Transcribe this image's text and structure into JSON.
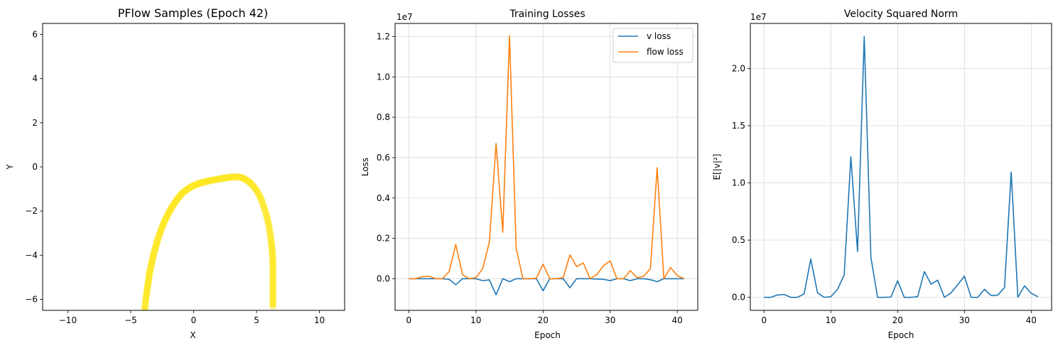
{
  "chart_data": [
    {
      "type": "scatter",
      "title": "PFlow Samples (Epoch 42)",
      "xlabel": "X",
      "ylabel": "Y",
      "xlim": [
        -12,
        12
      ],
      "ylim": [
        -6.5,
        6.5
      ],
      "xticks": [
        -10,
        -5,
        0,
        5,
        10
      ],
      "yticks": [
        -6,
        -4,
        -2,
        0,
        2,
        4,
        6
      ],
      "grid": false,
      "color": "#fde725",
      "points": [
        [
          -3.9,
          -6.5
        ],
        [
          -3.8,
          -6.0
        ],
        [
          -3.7,
          -5.6
        ],
        [
          -3.6,
          -5.2
        ],
        [
          -3.5,
          -4.8
        ],
        [
          -3.35,
          -4.4
        ],
        [
          -3.2,
          -4.0
        ],
        [
          -3.0,
          -3.6
        ],
        [
          -2.8,
          -3.2
        ],
        [
          -2.55,
          -2.8
        ],
        [
          -2.3,
          -2.45
        ],
        [
          -2.0,
          -2.1
        ],
        [
          -1.7,
          -1.8
        ],
        [
          -1.35,
          -1.5
        ],
        [
          -1.0,
          -1.25
        ],
        [
          -0.6,
          -1.05
        ],
        [
          -0.2,
          -0.9
        ],
        [
          0.2,
          -0.8
        ],
        [
          0.6,
          -0.72
        ],
        [
          1.0,
          -0.66
        ],
        [
          1.5,
          -0.6
        ],
        [
          2.0,
          -0.55
        ],
        [
          2.5,
          -0.5
        ],
        [
          3.0,
          -0.46
        ],
        [
          3.5,
          -0.45
        ],
        [
          4.0,
          -0.52
        ],
        [
          4.5,
          -0.72
        ],
        [
          5.0,
          -1.05
        ],
        [
          5.4,
          -1.5
        ],
        [
          5.75,
          -2.1
        ],
        [
          6.0,
          -2.7
        ],
        [
          6.15,
          -3.3
        ],
        [
          6.25,
          -3.8
        ],
        [
          6.3,
          -4.3
        ],
        [
          6.3,
          -4.8
        ],
        [
          6.3,
          -5.3
        ],
        [
          6.3,
          -5.8
        ],
        [
          6.3,
          -6.3
        ]
      ]
    },
    {
      "type": "line",
      "title": "Training Losses",
      "xlabel": "Epoch",
      "ylabel": "Loss",
      "offset_label": "1e7",
      "xlim": [
        -2.05,
        43.05
      ],
      "ylim": [
        -0.157,
        1.265
      ],
      "xticks": [
        0,
        10,
        20,
        30,
        40
      ],
      "yticks": [
        0.0,
        0.2,
        0.4,
        0.6,
        0.8,
        1.0,
        1.2
      ],
      "grid": true,
      "legend": "top-right",
      "x": [
        0,
        1,
        2,
        3,
        4,
        5,
        6,
        7,
        8,
        9,
        10,
        11,
        12,
        13,
        14,
        15,
        16,
        17,
        18,
        19,
        20,
        21,
        22,
        23,
        24,
        25,
        26,
        27,
        28,
        29,
        30,
        31,
        32,
        33,
        34,
        35,
        36,
        37,
        38,
        39,
        40,
        41
      ],
      "series": [
        {
          "name": "v loss",
          "color": "#1f77b4",
          "values": [
            0,
            0,
            0,
            0,
            0,
            0,
            -0.003,
            -0.03,
            0,
            0,
            0,
            -0.01,
            -0.006,
            -0.08,
            0,
            -0.015,
            0,
            0,
            0,
            0,
            -0.06,
            0,
            0,
            0,
            -0.045,
            0,
            0,
            0,
            -0.002,
            -0.003,
            -0.01,
            0,
            0,
            -0.01,
            0,
            0,
            -0.005,
            -0.015,
            0,
            0,
            0,
            0
          ]
        },
        {
          "name": "flow loss",
          "color": "#ff7f0e",
          "values": [
            0,
            0,
            0.01,
            0.012,
            0,
            0,
            0.035,
            0.17,
            0.02,
            0,
            0.005,
            0.05,
            0.18,
            0.67,
            0.23,
            1.205,
            0.15,
            0,
            0,
            0.002,
            0.072,
            0,
            0,
            0.005,
            0.118,
            0.06,
            0.078,
            0,
            0.02,
            0.064,
            0.088,
            0,
            0,
            0.04,
            0.005,
            0.012,
            0.05,
            0.55,
            0,
            0.055,
            0.015,
            0
          ]
        }
      ]
    },
    {
      "type": "line",
      "title": "Velocity Squared Norm",
      "xlabel": "Epoch",
      "ylabel": "E[|v|²]",
      "offset_label": "1e7",
      "xlim": [
        -2.05,
        43.05
      ],
      "ylim": [
        -0.114,
        2.394
      ],
      "xticks": [
        0,
        10,
        20,
        30,
        40
      ],
      "yticks": [
        0.0,
        0.5,
        1.0,
        1.5,
        2.0
      ],
      "grid": true,
      "color": "#1f77b4",
      "x": [
        0,
        1,
        2,
        3,
        4,
        5,
        6,
        7,
        8,
        9,
        10,
        11,
        12,
        13,
        14,
        15,
        16,
        17,
        18,
        19,
        20,
        21,
        22,
        23,
        24,
        25,
        26,
        27,
        28,
        29,
        30,
        31,
        32,
        33,
        34,
        35,
        36,
        37,
        38,
        39,
        40,
        41
      ],
      "values": [
        0,
        0,
        0.02,
        0.025,
        0,
        0,
        0.03,
        0.335,
        0.04,
        0,
        0.005,
        0.07,
        0.195,
        1.23,
        0.4,
        2.28,
        0.35,
        0,
        0,
        0.002,
        0.145,
        0,
        0,
        0.005,
        0.225,
        0.115,
        0.15,
        0,
        0.04,
        0.11,
        0.185,
        0,
        0,
        0.07,
        0.015,
        0.02,
        0.085,
        1.095,
        0,
        0.1,
        0.035,
        0.005
      ]
    }
  ]
}
